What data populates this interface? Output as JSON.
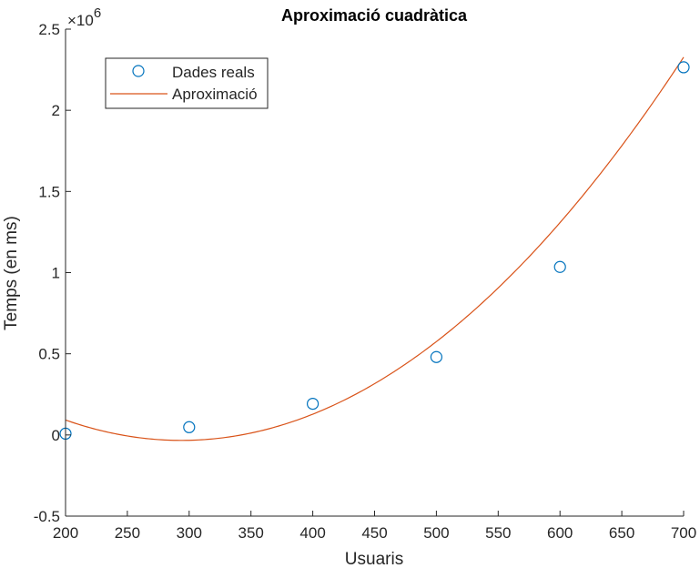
{
  "chart_data": {
    "type": "scatter",
    "title": "Aproximació cuadràtica",
    "xlabel": "Usuaris",
    "ylabel": "Temps (en ms)",
    "y_exponent_label": "×10",
    "y_exponent": "6",
    "xlim": [
      200,
      700
    ],
    "ylim": [
      -500000,
      2500000
    ],
    "x_ticks": [
      200,
      250,
      300,
      350,
      400,
      450,
      500,
      550,
      600,
      650,
      700
    ],
    "x_tick_labels": [
      "200",
      "250",
      "300",
      "350",
      "400",
      "450",
      "500",
      "550",
      "600",
      "650",
      "700"
    ],
    "y_ticks": [
      -500000,
      0,
      500000,
      1000000,
      1500000,
      2000000,
      2500000
    ],
    "y_tick_labels": [
      "-0.5",
      "0",
      "0.5",
      "1",
      "1.5",
      "2",
      "2.5"
    ],
    "grid": false,
    "legend_position": "top-left",
    "series": [
      {
        "name": "Dades reals",
        "kind": "markers",
        "marker": "circle-open",
        "color": "#0072BD",
        "x": [
          200,
          300,
          400,
          500,
          600,
          700
        ],
        "y": [
          8000,
          48000,
          192000,
          480000,
          1035000,
          2265000
        ]
      },
      {
        "name": "Aproximació",
        "kind": "line",
        "color": "#D95319",
        "fit": "quadratic",
        "coefficients": [
          14.3,
          -8400,
          1200000
        ],
        "x_range": [
          200,
          700
        ]
      }
    ]
  }
}
